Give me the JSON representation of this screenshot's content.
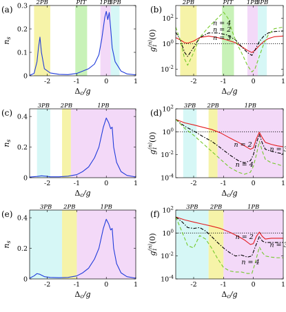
{
  "colors": {
    "band_yellow": "#f6f3a8",
    "band_green": "#c8f2b8",
    "band_magenta": "#f3d9f8",
    "band_cyan": "#d6f7f6",
    "ns_line": "#1f3bdb",
    "n2_line": "#e31a1c",
    "n3_line": "#000000",
    "n4_line": "#74c92a",
    "ref_line": "#000000"
  },
  "chart_data": [
    {
      "id": "a",
      "type": "line",
      "panel_label": "(a)",
      "xlabel": "Δc/g",
      "ylabel": "n_s",
      "xlim": [
        -2.6,
        1.0
      ],
      "ylim": [
        0,
        0.3
      ],
      "yscale": "linear",
      "xticks": [
        -2,
        -1,
        0,
        1
      ],
      "yticks": [
        0,
        0.1,
        0.2,
        0.3
      ],
      "ytick_labels": [
        "0",
        "0.1",
        "0.2",
        "0.3"
      ],
      "bands": [
        {
          "label": "2PB",
          "x": [
            -2.45,
            -1.9
          ],
          "color": "band_yellow"
        },
        {
          "label": "PIT",
          "x": [
            -1.05,
            -0.65
          ],
          "color": "band_green"
        },
        {
          "label": "1PB",
          "x": [
            -0.2,
            0.15
          ],
          "color": "band_magenta"
        },
        {
          "label": "3PB",
          "x": [
            0.15,
            0.45
          ],
          "color": "band_cyan"
        }
      ],
      "series": [
        {
          "color": "ns_line",
          "dash": "",
          "x": [
            -2.6,
            -2.45,
            -2.35,
            -2.3,
            -2.25,
            -2.2,
            -2.1,
            -1.9,
            -1.6,
            -1.3,
            -1.0,
            -0.8,
            -0.6,
            -0.4,
            -0.25,
            -0.15,
            -0.05,
            0.0,
            0.05,
            0.1,
            0.15,
            0.2,
            0.3,
            0.5,
            0.7,
            1.0
          ],
          "y": [
            0.002,
            0.01,
            0.06,
            0.12,
            0.165,
            0.1,
            0.03,
            0.012,
            0.006,
            0.005,
            0.01,
            0.02,
            0.03,
            0.05,
            0.09,
            0.16,
            0.25,
            0.275,
            0.24,
            0.27,
            0.2,
            0.12,
            0.06,
            0.02,
            0.008,
            0.004
          ]
        }
      ]
    },
    {
      "id": "b",
      "type": "line",
      "panel_label": "(b)",
      "xlabel": "Δc/g",
      "ylabel": "g1(n)(0)",
      "xlim": [
        -2.6,
        1.0
      ],
      "ylim": [
        0.003,
        1000
      ],
      "yscale": "log",
      "xticks": [
        -2,
        -1,
        0,
        1
      ],
      "yticks": [
        0.01,
        1,
        100
      ],
      "ytick_labels": [
        "10^-2",
        "10^0",
        "10^2"
      ],
      "hline": 1,
      "bands": [
        {
          "label": "2PB",
          "x": [
            -2.45,
            -1.9
          ],
          "color": "band_yellow"
        },
        {
          "label": "PIT",
          "x": [
            -1.05,
            -0.65
          ],
          "color": "band_green"
        },
        {
          "label": "1PB",
          "x": [
            -0.2,
            0.15
          ],
          "color": "band_magenta"
        },
        {
          "label": "3PB",
          "x": [
            0.15,
            0.45
          ],
          "color": "band_cyan"
        }
      ],
      "annotations": [
        {
          "text": "n = 4",
          "x": -1.35,
          "y": 28
        },
        {
          "text": "n = 2",
          "x": -1.35,
          "y": 9
        },
        {
          "text": "n = 3",
          "x": -1.35,
          "y": 2
        }
      ],
      "series": [
        {
          "name": "n = 2",
          "color": "n2_line",
          "dash": "",
          "x": [
            -2.6,
            -2.45,
            -2.3,
            -2.2,
            -2.0,
            -1.8,
            -1.5,
            -1.2,
            -0.9,
            -0.6,
            -0.4,
            -0.2,
            -0.05,
            0.05,
            0.2,
            0.35,
            0.5,
            0.7,
            1.0
          ],
          "y": [
            3,
            2,
            1.2,
            1.1,
            1.6,
            3,
            4,
            3,
            2,
            1.2,
            0.6,
            0.3,
            0.2,
            0.3,
            0.7,
            1.5,
            2.5,
            3.5,
            4
          ]
        },
        {
          "name": "n = 3",
          "color": "n3_line",
          "dash": "5,2,1.5,2",
          "x": [
            -2.6,
            -2.45,
            -2.3,
            -2.2,
            -2.0,
            -1.8,
            -1.5,
            -1.2,
            -0.9,
            -0.6,
            -0.4,
            -0.2,
            -0.05,
            0.05,
            0.2,
            0.35,
            0.5,
            0.7,
            1.0
          ],
          "y": [
            8,
            2,
            0.2,
            0.1,
            0.5,
            3,
            7,
            7,
            5,
            2,
            0.6,
            0.2,
            0.12,
            0.3,
            1.5,
            4,
            7,
            9,
            10
          ]
        },
        {
          "name": "n = 4",
          "color": "n4_line",
          "dash": "5,3",
          "x": [
            -2.6,
            -2.45,
            -2.3,
            -2.2,
            -2.0,
            -1.8,
            -1.5,
            -1.2,
            -1.0,
            -0.85,
            -0.7,
            -0.55,
            -0.4,
            -0.2,
            -0.05,
            0.05,
            0.2,
            0.35,
            0.5,
            0.7,
            1.0
          ],
          "y": [
            20,
            2,
            0.06,
            0.02,
            0.2,
            3,
            20,
            100,
            300,
            100,
            8,
            1,
            0.2,
            0.02,
            0.006,
            0.01,
            0.1,
            1,
            5,
            15,
            20
          ]
        }
      ]
    },
    {
      "id": "c",
      "type": "line",
      "panel_label": "(c)",
      "xlabel": "Δc/g",
      "ylabel": "n_s",
      "xlim": [
        -2.6,
        1.0
      ],
      "ylim": [
        0,
        0.45
      ],
      "yscale": "linear",
      "xticks": [
        -2,
        -1,
        0,
        1
      ],
      "yticks": [
        0,
        0.2,
        0.4
      ],
      "ytick_labels": [
        "0",
        "0.2",
        "0.4"
      ],
      "bands": [
        {
          "label": "3PB",
          "x": [
            -2.35,
            -1.9
          ],
          "color": "band_cyan"
        },
        {
          "label": "2PB",
          "x": [
            -1.5,
            -1.2
          ],
          "color": "band_yellow"
        },
        {
          "label": "1PB",
          "x": [
            -1.2,
            1.0
          ],
          "color": "band_magenta"
        }
      ],
      "series": [
        {
          "color": "ns_line",
          "dash": "",
          "x": [
            -2.6,
            -2.35,
            -2.2,
            -2.05,
            -1.9,
            -1.6,
            -1.3,
            -1.0,
            -0.8,
            -0.6,
            -0.4,
            -0.25,
            -0.1,
            0.0,
            0.08,
            0.15,
            0.2,
            0.25,
            0.35,
            0.5,
            0.7,
            1.0
          ],
          "y": [
            0.004,
            0.008,
            0.012,
            0.01,
            0.006,
            0.006,
            0.01,
            0.02,
            0.04,
            0.07,
            0.13,
            0.2,
            0.33,
            0.39,
            0.36,
            0.32,
            0.33,
            0.2,
            0.1,
            0.04,
            0.015,
            0.005
          ]
        }
      ]
    },
    {
      "id": "d",
      "type": "line",
      "panel_label": "(d)",
      "xlabel": "Δc/g",
      "ylabel": "g1(n)(0)",
      "xlim": [
        -2.6,
        1.0
      ],
      "ylim": [
        0.0001,
        100
      ],
      "yscale": "log",
      "xticks": [
        -2,
        -1,
        0,
        1
      ],
      "yticks": [
        0.0001,
        0.01,
        1,
        100
      ],
      "ytick_labels": [
        "10^-4",
        "10^-2",
        "10^0",
        "10^2"
      ],
      "hline": 1,
      "bands": [
        {
          "label": "3PB",
          "x": [
            -2.35,
            -1.9
          ],
          "color": "band_cyan"
        },
        {
          "label": "2PB",
          "x": [
            -1.5,
            -1.2
          ],
          "color": "band_yellow"
        },
        {
          "label": "1PB",
          "x": [
            -1.2,
            1.0
          ],
          "color": "band_magenta"
        }
      ],
      "annotations": [
        {
          "text": "n = 2",
          "x": -0.65,
          "y": 0.05
        },
        {
          "text": "n = 3",
          "x": 0.55,
          "y": 0.02
        },
        {
          "text": "n = 4",
          "x": -0.6,
          "y": 0.0009
        }
      ],
      "series": [
        {
          "name": "n = 2",
          "color": "n2_line",
          "dash": "",
          "x": [
            -2.6,
            -2.3,
            -2.0,
            -1.7,
            -1.4,
            -1.1,
            -0.8,
            -0.5,
            -0.3,
            -0.1,
            0.0,
            0.1,
            0.2,
            0.3,
            0.4,
            0.6,
            0.8,
            1.0
          ],
          "y": [
            12,
            6,
            4,
            2.5,
            1.6,
            0.8,
            0.3,
            0.12,
            0.06,
            0.03,
            0.04,
            0.25,
            0.9,
            0.3,
            0.12,
            0.08,
            0.06,
            0.05
          ]
        },
        {
          "name": "n = 3",
          "color": "n3_line",
          "dash": "5,2,1.5,2",
          "x": [
            -2.6,
            -2.3,
            -2.0,
            -1.7,
            -1.4,
            -1.1,
            -0.8,
            -0.5,
            -0.3,
            -0.1,
            0.0,
            0.1,
            0.2,
            0.3,
            0.4,
            0.6,
            0.8,
            1.0
          ],
          "y": [
            12,
            3,
            1.2,
            0.4,
            0.15,
            0.04,
            0.01,
            0.003,
            0.002,
            0.003,
            0.01,
            0.1,
            0.6,
            0.1,
            0.03,
            0.02,
            0.015,
            0.012
          ]
        },
        {
          "name": "n = 4",
          "color": "n4_line",
          "dash": "5,3",
          "x": [
            -2.6,
            -2.3,
            -2.0,
            -1.7,
            -1.4,
            -1.1,
            -0.8,
            -0.5,
            -0.3,
            -0.1,
            0.0,
            0.1,
            0.2,
            0.3,
            0.4,
            0.6,
            0.8,
            1.0
          ],
          "y": [
            12,
            2,
            0.5,
            0.1,
            0.02,
            0.004,
            0.0008,
            0.0003,
            0.0002,
            0.0003,
            0.001,
            0.01,
            0.15,
            0.02,
            0.004,
            0.002,
            0.0015,
            0.001
          ]
        }
      ]
    },
    {
      "id": "e",
      "type": "line",
      "panel_label": "(e)",
      "xlabel": "Δc/g",
      "ylabel": "n_s",
      "xlim": [
        -2.6,
        1.0
      ],
      "ylim": [
        0,
        0.45
      ],
      "yscale": "linear",
      "xticks": [
        -2,
        -1,
        0,
        1
      ],
      "yticks": [
        0,
        0.2,
        0.4
      ],
      "ytick_labels": [
        "0",
        "0.2",
        "0.4"
      ],
      "bands": [
        {
          "label": "3PB",
          "x": [
            -2.6,
            -1.5
          ],
          "color": "band_cyan"
        },
        {
          "label": "2PB",
          "x": [
            -1.5,
            -1.0
          ],
          "color": "band_yellow"
        },
        {
          "label": "1PB",
          "x": [
            -1.0,
            1.0
          ],
          "color": "band_magenta"
        }
      ],
      "series": [
        {
          "color": "ns_line",
          "dash": "",
          "x": [
            -2.6,
            -2.45,
            -2.35,
            -2.25,
            -2.1,
            -1.9,
            -1.6,
            -1.3,
            -1.0,
            -0.8,
            -0.6,
            -0.4,
            -0.25,
            -0.1,
            0.0,
            0.08,
            0.15,
            0.2,
            0.25,
            0.35,
            0.5,
            0.7,
            1.0
          ],
          "y": [
            0.005,
            0.02,
            0.035,
            0.03,
            0.015,
            0.01,
            0.008,
            0.01,
            0.02,
            0.04,
            0.07,
            0.13,
            0.2,
            0.33,
            0.39,
            0.36,
            0.32,
            0.33,
            0.2,
            0.1,
            0.04,
            0.015,
            0.005
          ]
        }
      ]
    },
    {
      "id": "f",
      "type": "line",
      "panel_label": "(f)",
      "xlabel": "Δc/g",
      "ylabel": "g1(n)(0)",
      "xlim": [
        -2.6,
        1.0
      ],
      "ylim": [
        0.0001,
        100
      ],
      "yscale": "log",
      "xticks": [
        -2,
        -1,
        0,
        1
      ],
      "yticks": [
        0.0001,
        0.01,
        1,
        100
      ],
      "ytick_labels": [
        "10^-4",
        "10^-2",
        "10^0",
        "10^2"
      ],
      "hline": 1,
      "bands": [
        {
          "label": "3PB",
          "x": [
            -2.6,
            -1.5
          ],
          "color": "band_cyan"
        },
        {
          "label": "2PB",
          "x": [
            -1.5,
            -1.0
          ],
          "color": "band_yellow"
        },
        {
          "label": "1PB",
          "x": [
            -1.0,
            1.0
          ],
          "color": "band_magenta"
        }
      ],
      "annotations": [
        {
          "text": "n = 2",
          "x": -0.6,
          "y": 0.3
        },
        {
          "text": "n = 3",
          "x": 0.55,
          "y": 0.06
        },
        {
          "text": "n = 4",
          "x": -0.4,
          "y": 0.002
        }
      ],
      "series": [
        {
          "name": "n = 2",
          "color": "n2_line",
          "dash": "",
          "x": [
            -2.6,
            -2.3,
            -2.0,
            -1.7,
            -1.4,
            -1.1,
            -0.8,
            -0.5,
            -0.3,
            -0.1,
            0.0,
            0.1,
            0.2,
            0.3,
            0.4,
            0.6,
            0.8,
            1.0
          ],
          "y": [
            25,
            14,
            9,
            6,
            4,
            2.5,
            1.2,
            0.5,
            0.25,
            0.1,
            0.12,
            0.5,
            1.2,
            0.5,
            0.3,
            0.35,
            0.35,
            0.35
          ]
        },
        {
          "name": "n = 3",
          "color": "n3_line",
          "dash": "5,2,1.5,2",
          "x": [
            -2.6,
            -2.4,
            -2.2,
            -2.0,
            -1.8,
            -1.6,
            -1.4,
            -1.2,
            -1.0,
            -0.8,
            -0.6,
            -0.4,
            -0.2,
            -0.05,
            0.05,
            0.2,
            0.3,
            0.4,
            0.6,
            0.8,
            1.0
          ],
          "y": [
            25,
            10,
            3,
            2.5,
            3,
            1.5,
            0.5,
            0.15,
            0.05,
            0.02,
            0.01,
            0.012,
            0.008,
            0.01,
            0.05,
            0.5,
            0.2,
            0.15,
            0.15,
            0.15,
            0.15
          ]
        },
        {
          "name": "n = 4",
          "color": "n4_line",
          "dash": "5,3",
          "x": [
            -2.6,
            -2.4,
            -2.2,
            -2.0,
            -1.8,
            -1.6,
            -1.4,
            -1.2,
            -1.0,
            -0.8,
            -0.6,
            -0.4,
            -0.2,
            -0.05,
            0.05,
            0.2,
            0.3,
            0.4,
            0.6,
            0.8,
            1.0
          ],
          "y": [
            25,
            1.5,
            0.08,
            0.05,
            0.6,
            0.3,
            0.05,
            0.006,
            0.001,
            0.0005,
            0.0004,
            0.0004,
            0.0003,
            0.0003,
            0.002,
            0.06,
            0.02,
            0.01,
            0.008,
            0.007,
            0.007
          ]
        }
      ]
    }
  ]
}
